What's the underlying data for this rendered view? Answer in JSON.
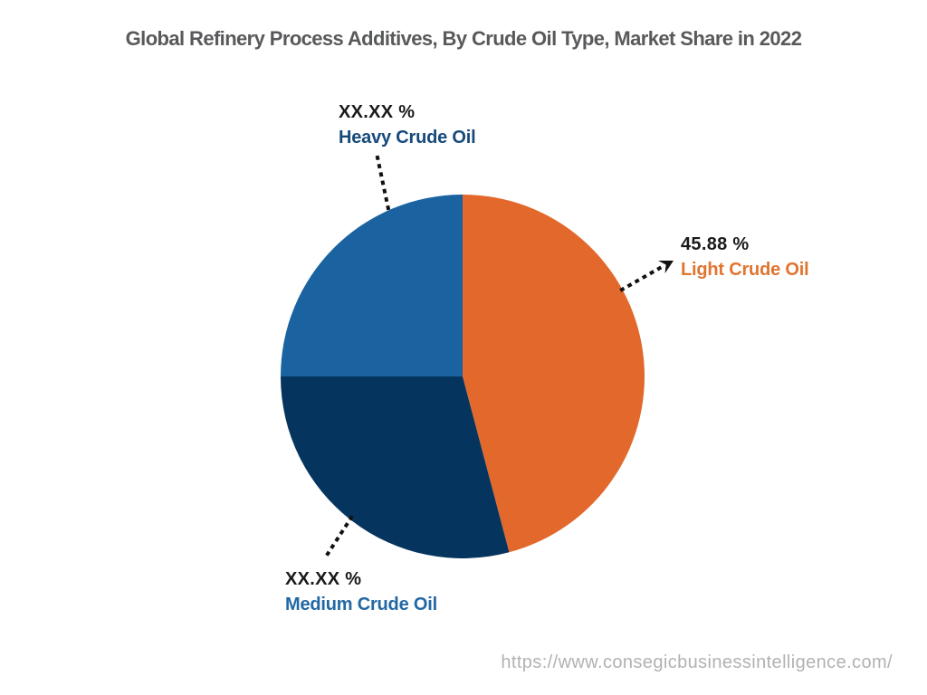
{
  "title": "Global Refinery Process Additives, By Crude Oil Type, Market Share in 2022",
  "source_url": "https://www.consegicbusinessintelligence.com/",
  "chart_data": {
    "type": "pie",
    "title": "Global Refinery Process Additives, By Crude Oil Type, Market Share in 2022",
    "unit": "%",
    "start_angle_deg_from_top": 0,
    "direction": "clockwise",
    "legend_position": "none",
    "callout_style": "dotted-leader-lines",
    "slices": [
      {
        "label": "Light Crude Oil",
        "value_pct": 45.88,
        "display_value": "45.88 %",
        "value_masked": false,
        "color": "#E2692B",
        "label_color": "#E0752F"
      },
      {
        "label": "Medium Crude Oil",
        "value_pct": 29.12,
        "display_value": "XX.XX %",
        "value_masked": true,
        "color": "#05355F",
        "label_color": "#2268A4"
      },
      {
        "label": "Heavy Crude Oil",
        "value_pct": 25.0,
        "display_value": "XX.XX %",
        "value_masked": true,
        "color": "#1B63A0",
        "label_color": "#17497B"
      }
    ]
  }
}
